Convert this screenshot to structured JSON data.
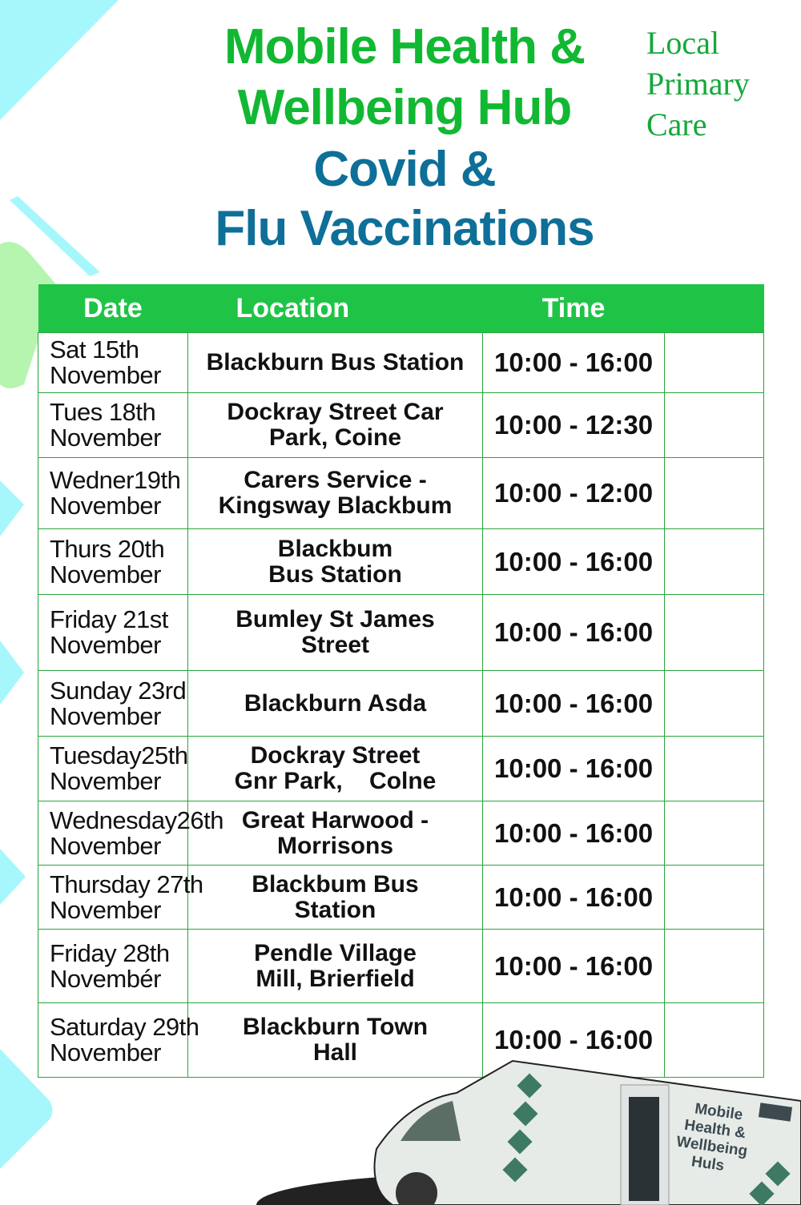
{
  "header": {
    "title_line1": "Mobile Health &",
    "title_line2": "Wellbeing Hub",
    "subtitle_line1": "Covid &",
    "subtitle_line2": "Flu Vaccinations",
    "org_line1": "Local",
    "org_line2": "Primary",
    "org_line3": "Care"
  },
  "colors": {
    "green": "#11b832",
    "blue": "#0e6f98",
    "header_bg": "#1fc447",
    "accent_cyan": "#a6f7fb"
  },
  "table": {
    "columns": [
      "Date",
      "Location",
      "Time",
      ""
    ],
    "rows": [
      {
        "date1": "Sat 15th",
        "date2": "November",
        "loc1": "Blackburn Bus Station",
        "loc2": "",
        "time": "10:00 - 16:00"
      },
      {
        "date1": "Tues 18th",
        "date2": "November",
        "loc1": "Dockray Street Car",
        "loc2": "Park, Coine",
        "time": "10:00 - 12:30"
      },
      {
        "date1": "Wedner19th",
        "date2": "November",
        "loc1": "Carers Service -",
        "loc2": "Kingsway Blackbum",
        "time": "10:00 - 12:00"
      },
      {
        "date1": "Thurs 20th",
        "date2": "November",
        "loc1": "Blackbum",
        "loc2": "Bus Station",
        "time": "10:00 - 16:00"
      },
      {
        "date1": "Friday 21st",
        "date2": "November",
        "loc1": "Bumley St James",
        "loc2": "Street",
        "time": "10:00 - 16:00"
      },
      {
        "date1": "Sunday 23rd",
        "date2": "November",
        "loc1": "Blackburn Asda",
        "loc2": "",
        "time": "10:00 - 16:00"
      },
      {
        "date1": "Tuesday25th",
        "date2": "November",
        "loc1": "Dockray Street",
        "loc2": "Gnr Park,    Colne",
        "time": "10:00 - 16:00"
      },
      {
        "date1": "Wednesday26th",
        "date2": "November",
        "loc1": "Great Harwood -",
        "loc2": "Morrisons",
        "time": "10:00 - 16:00"
      },
      {
        "date1": "Thursday 27th",
        "date2": "November",
        "loc1": "Blackbum Bus",
        "loc2": "Station",
        "time": "10:00 - 16:00"
      },
      {
        "date1": "Friday 28th",
        "date2": "Novembér",
        "loc1": "Pendle Village",
        "loc2": "Mill, Brierfield",
        "time": "10:00 - 16:00"
      },
      {
        "date1": "Saturday 29th",
        "date2": "November",
        "loc1": "Blackburn Town",
        "loc2": "Hall",
        "time": "10:00 - 16:00"
      }
    ]
  },
  "van": {
    "lettering": "Mobile Health & Wellbeing Huls"
  }
}
